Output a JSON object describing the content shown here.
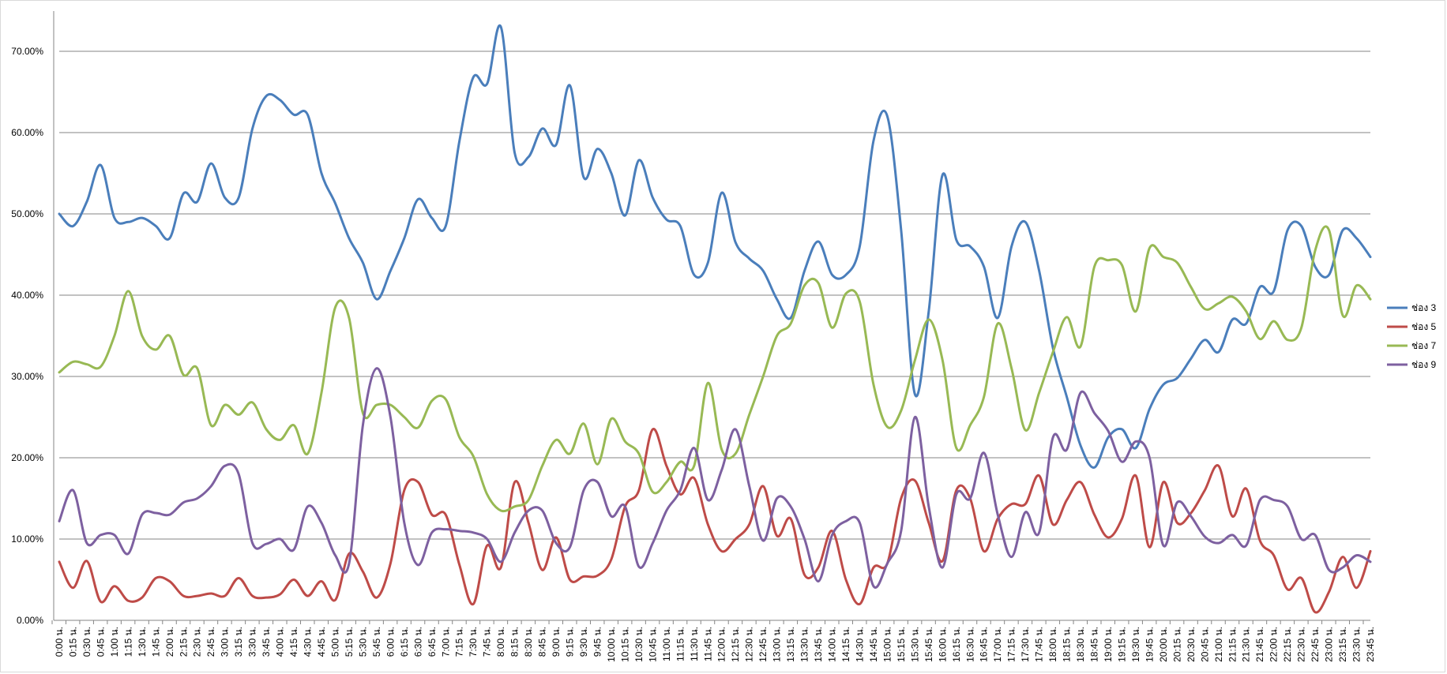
{
  "chart_data": {
    "type": "line",
    "title": "",
    "xlabel": "",
    "ylabel": "",
    "ylim": [
      0,
      0.75
    ],
    "yticks": [
      "0.00%",
      "10.00%",
      "20.00%",
      "30.00%",
      "40.00%",
      "50.00%",
      "60.00%",
      "70.00%"
    ],
    "grid": "horizontal",
    "legend_position": "right",
    "x": [
      "0:00 น.",
      "0:15 น.",
      "0:30 น.",
      "0:45 น.",
      "1:00 น.",
      "1:15 น.",
      "1:30 น.",
      "1:45 น.",
      "2:00 น.",
      "2:15 น.",
      "2:30 น.",
      "2:45 น.",
      "3:00 น.",
      "3:15 น.",
      "3:30 น.",
      "3:45 น.",
      "4:00 น.",
      "4:15 น.",
      "4:30 น.",
      "4:45 น.",
      "5:00 น.",
      "5:15 น.",
      "5:30 น.",
      "5:45 น.",
      "6:00 น.",
      "6:15 น.",
      "6:30 น.",
      "6:45 น.",
      "7:00 น.",
      "7:15 น.",
      "7:30 น.",
      "7:45 น.",
      "8:00 น.",
      "8:15 น.",
      "8:30 น.",
      "8:45 น.",
      "9:00 น.",
      "9:15 น.",
      "9:30 น.",
      "9:45 น.",
      "10:00 น.",
      "10:15 น.",
      "10:30 น.",
      "10:45 น.",
      "11:00 น.",
      "11:15 น.",
      "11:30 น.",
      "11:45 น.",
      "12:00 น.",
      "12:15 น.",
      "12:30 น.",
      "12:45 น.",
      "13:00 น.",
      "13:15 น.",
      "13:30 น.",
      "13:45 น.",
      "14:00 น.",
      "14:15 น.",
      "14:30 น.",
      "14:45 น.",
      "15:00 น.",
      "15:15 น.",
      "15:30 น.",
      "15:45 น.",
      "16:00 น.",
      "16:15 น.",
      "16:30 น.",
      "16:45 น.",
      "17:00 น.",
      "17:15 น.",
      "17:30 น.",
      "17:45 น.",
      "18:00 น.",
      "18:15 น.",
      "18:30 น.",
      "18:45 น.",
      "19:00 น.",
      "19:15 น.",
      "19:30 น.",
      "19:45 น.",
      "20:00 น.",
      "20:15 น.",
      "20:30 น.",
      "20:45 น.",
      "21:00 น.",
      "21:15 น.",
      "21:30 น.",
      "21:45 น.",
      "22:00 น.",
      "22:15 น.",
      "22:30 น.",
      "22:45 น.",
      "23:00 น.",
      "23:15 น.",
      "23:30 น.",
      "23:45 น."
    ],
    "series": [
      {
        "name": "ช่อง 3",
        "color": "#4a7ebb",
        "values": [
          0.5,
          0.485,
          0.515,
          0.56,
          0.495,
          0.49,
          0.495,
          0.485,
          0.47,
          0.525,
          0.515,
          0.562,
          0.52,
          0.52,
          0.605,
          0.645,
          0.64,
          0.622,
          0.622,
          0.55,
          0.513,
          0.47,
          0.44,
          0.395,
          0.43,
          0.47,
          0.518,
          0.495,
          0.485,
          0.59,
          0.668,
          0.66,
          0.73,
          0.575,
          0.57,
          0.605,
          0.585,
          0.658,
          0.545,
          0.58,
          0.55,
          0.498,
          0.566,
          0.52,
          0.493,
          0.485,
          0.425,
          0.44,
          0.526,
          0.465,
          0.445,
          0.43,
          0.395,
          0.372,
          0.43,
          0.466,
          0.425,
          0.425,
          0.46,
          0.59,
          0.62,
          0.48,
          0.278,
          0.38,
          0.548,
          0.468,
          0.46,
          0.435,
          0.372,
          0.46,
          0.49,
          0.43,
          0.335,
          0.275,
          0.215,
          0.188,
          0.225,
          0.235,
          0.212,
          0.26,
          0.29,
          0.298,
          0.322,
          0.345,
          0.33,
          0.37,
          0.365,
          0.41,
          0.405,
          0.48,
          0.485,
          0.435,
          0.425,
          0.48,
          0.47,
          0.447
        ]
      },
      {
        "name": "ช่อง 5",
        "color": "#be4b48",
        "values": [
          0.072,
          0.04,
          0.073,
          0.023,
          0.042,
          0.024,
          0.028,
          0.052,
          0.048,
          0.03,
          0.03,
          0.033,
          0.03,
          0.052,
          0.03,
          0.028,
          0.032,
          0.05,
          0.03,
          0.048,
          0.025,
          0.082,
          0.06,
          0.028,
          0.07,
          0.16,
          0.17,
          0.13,
          0.13,
          0.068,
          0.02,
          0.092,
          0.065,
          0.17,
          0.12,
          0.062,
          0.102,
          0.05,
          0.054,
          0.055,
          0.075,
          0.14,
          0.16,
          0.235,
          0.19,
          0.155,
          0.175,
          0.118,
          0.085,
          0.1,
          0.118,
          0.165,
          0.104,
          0.125,
          0.056,
          0.065,
          0.11,
          0.05,
          0.02,
          0.065,
          0.07,
          0.15,
          0.172,
          0.12,
          0.073,
          0.16,
          0.15,
          0.085,
          0.125,
          0.143,
          0.143,
          0.178,
          0.118,
          0.148,
          0.17,
          0.13,
          0.102,
          0.125,
          0.178,
          0.09,
          0.17,
          0.12,
          0.132,
          0.16,
          0.19,
          0.128,
          0.162,
          0.098,
          0.08,
          0.038,
          0.052,
          0.01,
          0.035,
          0.078,
          0.04,
          0.085
        ]
      },
      {
        "name": "ช่อง 7",
        "color": "#98b954",
        "values": [
          0.305,
          0.318,
          0.315,
          0.312,
          0.35,
          0.405,
          0.35,
          0.333,
          0.35,
          0.302,
          0.31,
          0.24,
          0.265,
          0.253,
          0.268,
          0.235,
          0.222,
          0.24,
          0.205,
          0.28,
          0.385,
          0.372,
          0.255,
          0.265,
          0.265,
          0.25,
          0.237,
          0.27,
          0.272,
          0.225,
          0.202,
          0.155,
          0.135,
          0.14,
          0.148,
          0.19,
          0.222,
          0.205,
          0.242,
          0.192,
          0.248,
          0.22,
          0.205,
          0.158,
          0.17,
          0.195,
          0.19,
          0.292,
          0.21,
          0.205,
          0.253,
          0.3,
          0.35,
          0.365,
          0.412,
          0.415,
          0.36,
          0.402,
          0.392,
          0.29,
          0.238,
          0.258,
          0.32,
          0.37,
          0.32,
          0.212,
          0.24,
          0.275,
          0.365,
          0.31,
          0.234,
          0.28,
          0.33,
          0.373,
          0.337,
          0.435,
          0.443,
          0.437,
          0.38,
          0.458,
          0.447,
          0.44,
          0.41,
          0.383,
          0.39,
          0.398,
          0.38,
          0.346,
          0.368,
          0.345,
          0.36,
          0.455,
          0.48,
          0.375,
          0.412,
          0.395
        ]
      },
      {
        "name": "ช่อง 9",
        "color": "#7d60a0",
        "values": [
          0.122,
          0.16,
          0.095,
          0.105,
          0.105,
          0.082,
          0.13,
          0.132,
          0.13,
          0.145,
          0.15,
          0.165,
          0.19,
          0.18,
          0.095,
          0.094,
          0.1,
          0.087,
          0.14,
          0.12,
          0.08,
          0.07,
          0.24,
          0.31,
          0.25,
          0.12,
          0.068,
          0.108,
          0.112,
          0.11,
          0.108,
          0.1,
          0.072,
          0.108,
          0.135,
          0.135,
          0.095,
          0.09,
          0.16,
          0.17,
          0.128,
          0.14,
          0.066,
          0.095,
          0.135,
          0.16,
          0.212,
          0.148,
          0.185,
          0.235,
          0.165,
          0.098,
          0.15,
          0.14,
          0.1,
          0.048,
          0.105,
          0.122,
          0.12,
          0.042,
          0.07,
          0.11,
          0.25,
          0.14,
          0.065,
          0.155,
          0.15,
          0.206,
          0.13,
          0.078,
          0.133,
          0.108,
          0.225,
          0.21,
          0.28,
          0.255,
          0.233,
          0.195,
          0.22,
          0.2,
          0.092,
          0.145,
          0.128,
          0.103,
          0.095,
          0.105,
          0.092,
          0.148,
          0.148,
          0.14,
          0.1,
          0.105,
          0.062,
          0.065,
          0.08,
          0.072
        ]
      }
    ]
  }
}
